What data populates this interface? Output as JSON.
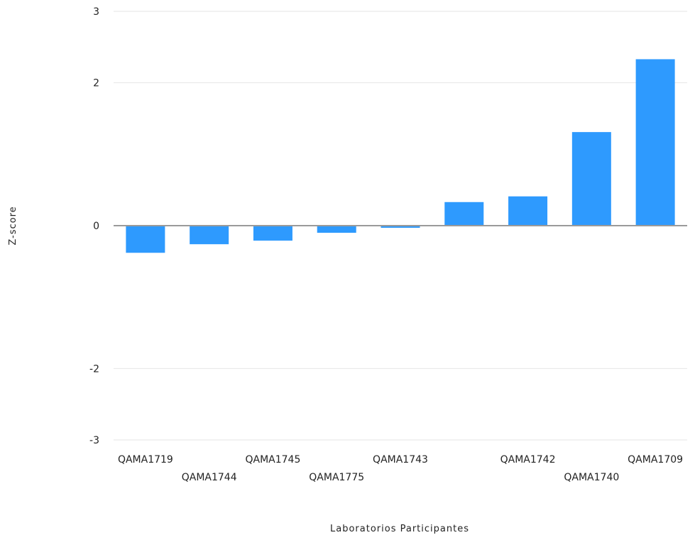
{
  "chart_data": {
    "type": "bar",
    "categories": [
      "QAMA1719",
      "QAMA1744",
      "QAMA1745",
      "QAMA1775",
      "QAMA1743",
      "",
      "QAMA1742",
      "QAMA1740",
      "QAMA1709"
    ],
    "series": [
      {
        "values": [
          -0.38,
          -0.26,
          -0.21,
          -0.1,
          -0.03,
          0.33,
          0.41,
          1.31,
          2.33
        ],
        "color": "#2E9AFE"
      }
    ],
    "xlabel": "Laboratorios Participantes",
    "ylabel": "Z-score",
    "ylim": [
      -3,
      3
    ],
    "yticks": [
      -3,
      -2,
      0,
      2,
      3
    ],
    "grid": true,
    "colors": {
      "bar": "#2E9AFE",
      "grid": "#e6e6e6",
      "zero_line": "#9a9a9a"
    }
  }
}
